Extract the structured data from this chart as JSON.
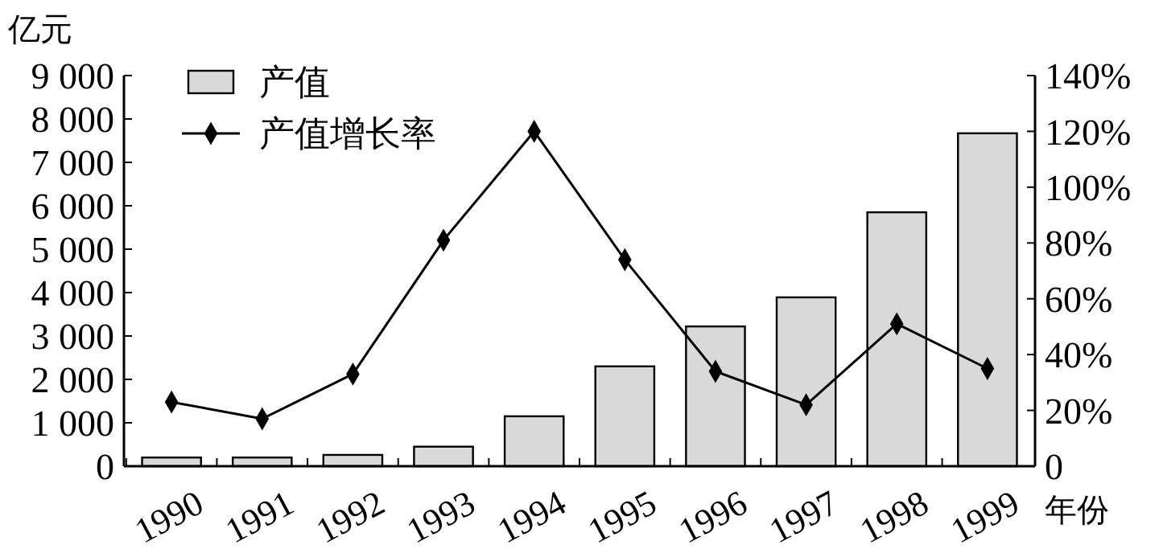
{
  "chart_data": {
    "type": "bar",
    "ylabel": "亿元",
    "xlabel": "年份",
    "categories": [
      "1990",
      "1991",
      "1992",
      "1993",
      "1994",
      "1995",
      "1996",
      "1997",
      "1998",
      "1999"
    ],
    "series": [
      {
        "name": "产值",
        "color": "#d9d9d9",
        "values": [
          200,
          200,
          260,
          450,
          1150,
          2300,
          3220,
          3890,
          5850,
          7670
        ]
      },
      {
        "name": "产值增长率",
        "type": "line",
        "axis": "y2",
        "color": "#000000",
        "marker": "diamond",
        "values": [
          23,
          17,
          33,
          81,
          120,
          74,
          34,
          22,
          51,
          35
        ]
      }
    ],
    "ylim": [
      0,
      9000
    ],
    "yticks": [
      0,
      {
        "value": 1000,
        "label": "1 000"
      },
      {
        "value": 2000,
        "label": "2 000"
      },
      {
        "value": 3000,
        "label": "3 000"
      },
      {
        "value": 4000,
        "label": "4 000"
      },
      {
        "value": 5000,
        "label": "5 000"
      },
      {
        "value": 6000,
        "label": "6 000"
      },
      {
        "value": 7000,
        "label": "7 000"
      },
      {
        "value": 8000,
        "label": "8 000"
      },
      {
        "value": 9000,
        "label": "9 000"
      }
    ],
    "y2lim": [
      0,
      140
    ],
    "y2ticks": [
      0,
      {
        "value": 20,
        "label": "20%"
      },
      {
        "value": 40,
        "label": "40%"
      },
      {
        "value": 60,
        "label": "60%"
      },
      {
        "value": 80,
        "label": "80%"
      },
      {
        "value": 100,
        "label": "100%"
      },
      {
        "value": 120,
        "label": "120%"
      },
      {
        "value": 140,
        "label": "140%"
      }
    ],
    "legend": "top left",
    "grid": false
  }
}
